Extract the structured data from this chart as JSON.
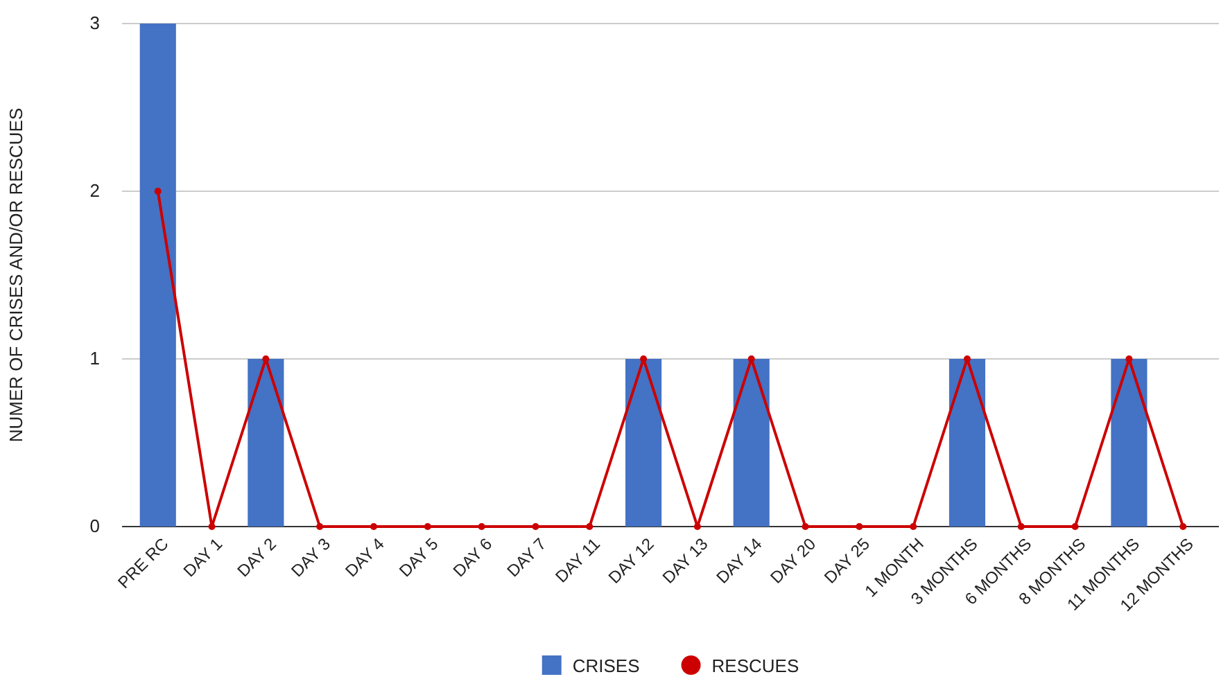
{
  "chart_data": {
    "type": "bar",
    "ylabel": "NUMER OF CRISES AND/OR RESCUES",
    "categories": [
      "PRE RC",
      "DAY 1",
      "DAY 2",
      "DAY 3",
      "DAY 4",
      "DAY 5",
      "DAY 6",
      "DAY 7",
      "DAY 11",
      "DAY 12",
      "DAY 13",
      "DAY 14",
      "DAY 20",
      "DAY 25",
      "1 MONTH",
      "3 MONTHS",
      "6 MONTHS",
      "8 MONTHS",
      "11 MONTHS",
      "12 MONTHS"
    ],
    "series": [
      {
        "name": "CRISES",
        "color": "#4472c4",
        "values": [
          3,
          0,
          1,
          0,
          0,
          0,
          0,
          0,
          0,
          1,
          0,
          1,
          0,
          0,
          0,
          1,
          0,
          0,
          1,
          0
        ]
      },
      {
        "name": "RESCUES",
        "type": "line",
        "color": "#cc0000",
        "values": [
          2,
          0,
          1,
          0,
          0,
          0,
          0,
          0,
          0,
          1,
          0,
          1,
          0,
          0,
          0,
          1,
          0,
          0,
          1,
          0
        ]
      }
    ],
    "ylim": [
      0,
      3
    ],
    "yticks": [
      0,
      1,
      2,
      3
    ],
    "grid": "y",
    "legend": "bottom",
    "marker": "circle",
    "line_style": "solid"
  }
}
